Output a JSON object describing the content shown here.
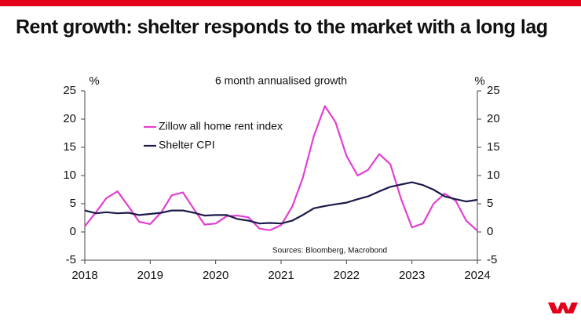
{
  "chart_data": {
    "type": "line",
    "title": "Rent growth: shelter responds to the market with a long lag",
    "subtitle": "6 month annualised growth",
    "ylabel": "%",
    "y2label": "%",
    "annotation": "Sources: Bloomberg, Macrobond",
    "x": [
      2018.0,
      2018.17,
      2018.33,
      2018.5,
      2018.67,
      2018.83,
      2019.0,
      2019.17,
      2019.33,
      2019.5,
      2019.67,
      2019.83,
      2020.0,
      2020.17,
      2020.33,
      2020.5,
      2020.67,
      2020.83,
      2021.0,
      2021.17,
      2021.33,
      2021.5,
      2021.67,
      2021.83,
      2022.0,
      2022.17,
      2022.33,
      2022.5,
      2022.67,
      2022.83,
      2023.0,
      2023.17,
      2023.33,
      2023.5,
      2023.67,
      2023.83,
      2024.0
    ],
    "series": [
      {
        "name": "Zillow all home rent index",
        "color": "#e23fd2",
        "values": [
          1.0,
          3.5,
          6.0,
          7.2,
          4.5,
          1.8,
          1.4,
          3.5,
          6.5,
          7.0,
          4.0,
          1.3,
          1.5,
          2.8,
          2.9,
          2.6,
          0.6,
          0.3,
          1.2,
          4.5,
          9.5,
          17.0,
          22.3,
          19.5,
          13.5,
          10.0,
          11.0,
          13.8,
          12.0,
          6.0,
          0.8,
          1.5,
          5.0,
          6.8,
          5.5,
          2.0,
          0.2
        ]
      },
      {
        "name": "Shelter CPI",
        "color": "#1b1a4a",
        "values": [
          3.8,
          3.3,
          3.5,
          3.3,
          3.4,
          3.0,
          3.2,
          3.4,
          3.8,
          3.8,
          3.4,
          2.9,
          3.0,
          3.0,
          2.3,
          2.0,
          1.5,
          1.6,
          1.5,
          2.0,
          3.0,
          4.2,
          4.6,
          4.9,
          5.2,
          5.8,
          6.3,
          7.2,
          8.0,
          8.4,
          8.8,
          8.3,
          7.5,
          6.3,
          5.8,
          5.4,
          5.7
        ]
      }
    ],
    "xlim": [
      2018,
      2024
    ],
    "xticks": [
      2018,
      2019,
      2020,
      2021,
      2022,
      2023,
      2024
    ],
    "ylim": [
      -5,
      25
    ],
    "yticks": [
      -5,
      0,
      5,
      10,
      15,
      20,
      25
    ],
    "y2lim": [
      -5,
      25
    ],
    "y2ticks": [
      -5,
      0,
      5,
      10,
      15,
      20,
      25
    ],
    "legend": "upper left"
  }
}
